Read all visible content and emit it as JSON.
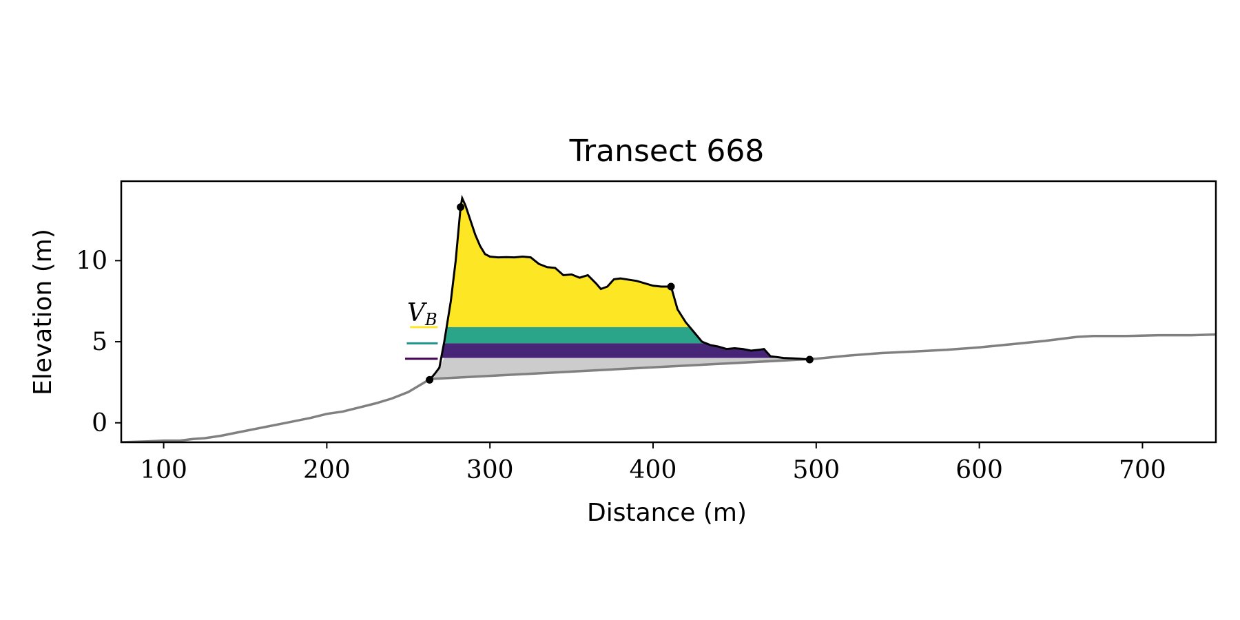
{
  "chart_data": {
    "type": "area",
    "title": "Transect 668",
    "xlabel": "Distance (m)",
    "ylabel": "Elevation (m)",
    "xlim": [
      74,
      745
    ],
    "ylim": [
      -1.2,
      14.9
    ],
    "xticks": [
      100,
      200,
      300,
      400,
      500,
      600,
      700
    ],
    "yticks": [
      0,
      5,
      10
    ],
    "grid": false,
    "annotation": {
      "text": "V",
      "subscript": "B"
    },
    "profile_full": [
      [
        74,
        -1.2
      ],
      [
        90,
        -1.15
      ],
      [
        100,
        -1.1
      ],
      [
        110,
        -1.1
      ],
      [
        118,
        -1.0
      ],
      [
        125,
        -0.95
      ],
      [
        135,
        -0.8
      ],
      [
        145,
        -0.6
      ],
      [
        160,
        -0.3
      ],
      [
        175,
        0.0
      ],
      [
        190,
        0.3
      ],
      [
        200,
        0.55
      ],
      [
        210,
        0.7
      ],
      [
        220,
        0.95
      ],
      [
        230,
        1.2
      ],
      [
        240,
        1.5
      ],
      [
        250,
        1.9
      ],
      [
        255,
        2.2
      ],
      [
        260,
        2.5
      ],
      [
        263,
        2.7
      ],
      [
        500,
        3.95
      ],
      [
        520,
        4.15
      ],
      [
        540,
        4.3
      ],
      [
        560,
        4.4
      ],
      [
        580,
        4.5
      ],
      [
        600,
        4.65
      ],
      [
        620,
        4.85
      ],
      [
        640,
        5.05
      ],
      [
        660,
        5.3
      ],
      [
        670,
        5.35
      ],
      [
        690,
        5.35
      ],
      [
        710,
        5.4
      ],
      [
        730,
        5.4
      ],
      [
        745,
        5.45
      ]
    ],
    "profile_dune": [
      [
        263,
        2.65
      ],
      [
        266,
        3.0
      ],
      [
        269,
        3.4
      ],
      [
        272,
        5.0
      ],
      [
        276,
        7.5
      ],
      [
        279,
        10.0
      ],
      [
        282,
        13.3
      ],
      [
        283,
        13.85
      ],
      [
        285,
        13.4
      ],
      [
        288,
        12.5
      ],
      [
        291,
        11.6
      ],
      [
        294,
        10.9
      ],
      [
        297,
        10.4
      ],
      [
        300,
        10.25
      ],
      [
        305,
        10.2
      ],
      [
        310,
        10.22
      ],
      [
        315,
        10.2
      ],
      [
        320,
        10.25
      ],
      [
        325,
        10.2
      ],
      [
        330,
        9.8
      ],
      [
        335,
        9.6
      ],
      [
        340,
        9.55
      ],
      [
        345,
        9.1
      ],
      [
        350,
        9.15
      ],
      [
        355,
        8.95
      ],
      [
        360,
        9.1
      ],
      [
        365,
        8.6
      ],
      [
        368,
        8.25
      ],
      [
        372,
        8.4
      ],
      [
        376,
        8.85
      ],
      [
        380,
        8.9
      ],
      [
        390,
        8.75
      ],
      [
        400,
        8.45
      ],
      [
        405,
        8.4
      ],
      [
        411,
        8.4
      ],
      [
        415,
        7.0
      ],
      [
        420,
        6.2
      ],
      [
        425,
        5.6
      ],
      [
        430,
        5.0
      ],
      [
        435,
        4.8
      ],
      [
        440,
        4.7
      ],
      [
        445,
        4.55
      ],
      [
        450,
        4.6
      ],
      [
        455,
        4.55
      ],
      [
        460,
        4.45
      ],
      [
        465,
        4.5
      ],
      [
        468,
        4.55
      ],
      [
        472,
        4.1
      ],
      [
        476,
        4.05
      ],
      [
        480,
        4.0
      ],
      [
        485,
        3.98
      ],
      [
        490,
        3.95
      ],
      [
        496,
        3.9
      ]
    ],
    "key_points": [
      [
        263,
        2.65
      ],
      [
        282,
        13.3
      ],
      [
        411,
        8.4
      ],
      [
        496,
        3.9
      ]
    ],
    "toe_baseline": [
      [
        263,
        2.65
      ],
      [
        496,
        3.9
      ]
    ],
    "bands": [
      {
        "name": "yellow",
        "color": "#fde725",
        "bottom": 5.9,
        "top": 99
      },
      {
        "name": "teal",
        "color": "#21918c",
        "bottom": 4.9,
        "top": 5.9
      },
      {
        "name": "purple",
        "color": "#482677",
        "bottom": 4.0,
        "top": 4.9
      }
    ],
    "legend_lines": [
      {
        "color": "#fde725",
        "y": 5.9,
        "x0": 251,
        "x1": 268
      },
      {
        "color": "#21918c",
        "y": 4.9,
        "x0": 249,
        "x1": 268
      },
      {
        "color": "#440154",
        "y": 3.95,
        "x0": 248,
        "x1": 268
      }
    ],
    "colors": {
      "profile": "#808080",
      "dune_outline": "#000000",
      "toe_fill": "#cccccc",
      "teal_fill": "#2aa58a"
    }
  }
}
